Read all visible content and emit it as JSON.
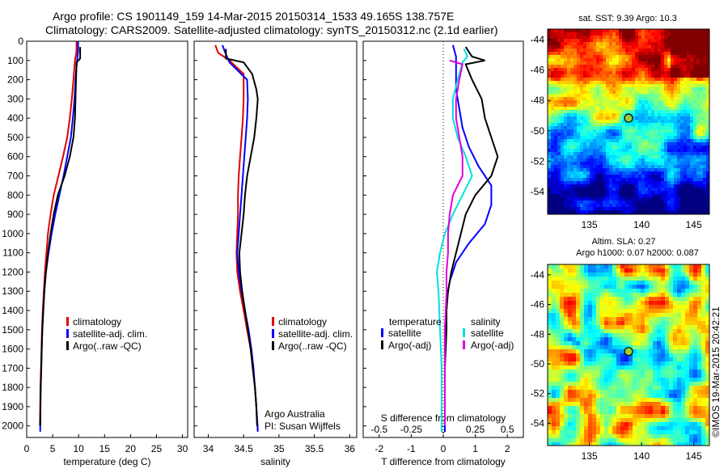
{
  "header": {
    "line1": "Argo profile: CS 1901149_159 14-Mar-2015 20150314_1533 49.165S 138.757E",
    "line2": "Climatology: CARS2009. Satellite-adjusted climatology: synTS_20150312.nc (2.1d earlier)"
  },
  "colors": {
    "climatology": "#e00000",
    "satellite": "#0000ff",
    "argo": "#000000",
    "satellite_diff_s": "#00e0e0",
    "argo_diff_s": "#e000e0"
  },
  "footer_note": "©IMOS 19-Mar-2015 20:42:21",
  "chart_data": [
    {
      "type": "line",
      "panel": "temperature",
      "xlabel": "temperature (deg C)",
      "ylabel": "",
      "xlim": [
        0,
        31
      ],
      "ylim": [
        2060,
        0
      ],
      "x_ticks": [
        0,
        5,
        10,
        15,
        20,
        25,
        30
      ],
      "y_ticks": [
        0,
        100,
        200,
        300,
        400,
        500,
        600,
        700,
        800,
        900,
        1000,
        1100,
        1200,
        1300,
        1400,
        1500,
        1600,
        1700,
        1800,
        1900,
        2000
      ],
      "legend": {
        "position": "lower-right",
        "entries": [
          "climatology",
          "satellite-adj. clim.",
          "Argo(..raw -QC)"
        ]
      },
      "series": [
        {
          "name": "climatology",
          "color_key": "climatology",
          "points": [
            [
              9.6,
              0
            ],
            [
              9.6,
              50
            ],
            [
              9.3,
              100
            ],
            [
              9.0,
              200
            ],
            [
              8.7,
              300
            ],
            [
              8.3,
              400
            ],
            [
              7.8,
              500
            ],
            [
              7.0,
              600
            ],
            [
              6.1,
              700
            ],
            [
              5.2,
              800
            ],
            [
              4.6,
              900
            ],
            [
              4.1,
              1000
            ],
            [
              3.8,
              1100
            ],
            [
              3.5,
              1200
            ],
            [
              3.3,
              1300
            ],
            [
              3.1,
              1400
            ],
            [
              2.95,
              1500
            ],
            [
              2.85,
              1600
            ],
            [
              2.75,
              1700
            ],
            [
              2.65,
              1800
            ],
            [
              2.6,
              1900
            ],
            [
              2.55,
              2000
            ]
          ]
        },
        {
          "name": "satellite-adj. clim.",
          "color_key": "satellite",
          "points": [
            [
              9.9,
              0
            ],
            [
              9.9,
              50
            ],
            [
              9.7,
              100
            ],
            [
              9.4,
              200
            ],
            [
              9.2,
              300
            ],
            [
              8.9,
              400
            ],
            [
              8.5,
              500
            ],
            [
              7.8,
              600
            ],
            [
              7.1,
              700
            ],
            [
              6.3,
              800
            ],
            [
              5.5,
              900
            ],
            [
              4.8,
              1000
            ],
            [
              4.2,
              1100
            ],
            [
              3.7,
              1200
            ],
            [
              3.4,
              1300
            ],
            [
              3.2,
              1400
            ],
            [
              3.0,
              1500
            ],
            [
              2.9,
              1600
            ],
            [
              2.8,
              1700
            ],
            [
              2.7,
              1800
            ],
            [
              2.65,
              1900
            ],
            [
              2.6,
              2030
            ]
          ]
        },
        {
          "name": "Argo(..raw -QC)",
          "color_key": "argo",
          "points": [
            [
              10.3,
              30
            ],
            [
              10.3,
              90
            ],
            [
              9.6,
              110
            ],
            [
              9.5,
              200
            ],
            [
              9.4,
              300
            ],
            [
              9.3,
              400
            ],
            [
              9.0,
              500
            ],
            [
              8.3,
              600
            ],
            [
              7.3,
              700
            ],
            [
              6.0,
              800
            ],
            [
              5.2,
              900
            ],
            [
              4.6,
              1000
            ],
            [
              4.1,
              1100
            ],
            [
              3.7,
              1200
            ],
            [
              3.4,
              1300
            ],
            [
              3.2,
              1400
            ],
            [
              3.0,
              1500
            ],
            [
              2.9,
              1600
            ],
            [
              2.8,
              1700
            ],
            [
              2.7,
              1800
            ],
            [
              2.65,
              1900
            ],
            [
              2.6,
              2000
            ]
          ]
        }
      ]
    },
    {
      "type": "line",
      "panel": "salinity",
      "xlabel": "salinity",
      "xlim": [
        33.8,
        36.1
      ],
      "ylim": [
        2060,
        0
      ],
      "x_ticks": [
        34,
        34.5,
        35,
        35.5,
        36
      ],
      "legend": {
        "position": "lower-right",
        "entries": [
          "climatology",
          "satellite-adj. clim.",
          "Argo(..raw -QC)"
        ]
      },
      "annotation": [
        "Argo Australia",
        "PI: Susan Wijffels"
      ],
      "series": [
        {
          "name": "climatology",
          "color_key": "climatology",
          "points": [
            [
              34.1,
              20
            ],
            [
              34.14,
              60
            ],
            [
              34.3,
              100
            ],
            [
              34.5,
              170
            ],
            [
              34.5,
              300
            ],
            [
              34.49,
              400
            ],
            [
              34.47,
              500
            ],
            [
              34.45,
              600
            ],
            [
              34.43,
              700
            ],
            [
              34.42,
              800
            ],
            [
              34.42,
              900
            ],
            [
              34.41,
              1000
            ],
            [
              34.4,
              1100
            ],
            [
              34.41,
              1200
            ],
            [
              34.45,
              1300
            ],
            [
              34.5,
              1400
            ],
            [
              34.55,
              1500
            ],
            [
              34.6,
              1600
            ],
            [
              34.63,
              1700
            ],
            [
              34.66,
              1800
            ],
            [
              34.68,
              1900
            ],
            [
              34.7,
              2020
            ]
          ]
        },
        {
          "name": "satellite-adj. clim.",
          "color_key": "satellite",
          "points": [
            [
              34.2,
              20
            ],
            [
              34.24,
              60
            ],
            [
              34.3,
              110
            ],
            [
              34.55,
              200
            ],
            [
              34.56,
              300
            ],
            [
              34.55,
              400
            ],
            [
              34.53,
              500
            ],
            [
              34.51,
              600
            ],
            [
              34.49,
              700
            ],
            [
              34.47,
              800
            ],
            [
              34.45,
              900
            ],
            [
              34.43,
              1000
            ],
            [
              34.41,
              1100
            ],
            [
              34.43,
              1200
            ],
            [
              34.47,
              1300
            ],
            [
              34.52,
              1400
            ],
            [
              34.57,
              1500
            ],
            [
              34.61,
              1600
            ],
            [
              34.64,
              1700
            ],
            [
              34.66,
              1800
            ],
            [
              34.68,
              1900
            ],
            [
              34.7,
              2030
            ]
          ]
        },
        {
          "name": "Argo(..raw -QC)",
          "color_key": "argo",
          "points": [
            [
              34.25,
              40
            ],
            [
              34.25,
              90
            ],
            [
              34.5,
              110
            ],
            [
              34.62,
              170
            ],
            [
              34.68,
              250
            ],
            [
              34.7,
              300
            ],
            [
              34.68,
              400
            ],
            [
              34.65,
              500
            ],
            [
              34.6,
              600
            ],
            [
              34.55,
              700
            ],
            [
              34.52,
              800
            ],
            [
              34.5,
              900
            ],
            [
              34.47,
              1000
            ],
            [
              34.44,
              1100
            ],
            [
              34.45,
              1200
            ],
            [
              34.48,
              1300
            ],
            [
              34.52,
              1400
            ],
            [
              34.56,
              1500
            ],
            [
              34.6,
              1600
            ],
            [
              34.63,
              1700
            ],
            [
              34.66,
              1800
            ],
            [
              34.68,
              1900
            ],
            [
              34.69,
              2000
            ]
          ]
        }
      ]
    },
    {
      "type": "line",
      "panel": "difference",
      "xlabel": "T difference from climatology",
      "xlabel_top": "S difference from climatology",
      "xlim": [
        -2.5,
        2.5
      ],
      "ylim": [
        2060,
        0
      ],
      "x_ticks": [
        "-2",
        "-1",
        "0",
        "1",
        "2"
      ],
      "x_ticks_top": [
        "-0.5",
        "-0.25",
        "0",
        "0.25",
        "0.5"
      ],
      "legend": {
        "position": "lower-center",
        "temperature_header": "temperature",
        "salinity_header": "salinity",
        "temperature_entries": [
          "satellite",
          "Argo(-adj)"
        ],
        "salinity_entries": [
          "satellite",
          "Argo(-adj)"
        ]
      },
      "series": [
        {
          "name": "T satellite",
          "color_key": "satellite",
          "points": [
            [
              0.3,
              20
            ],
            [
              0.4,
              80
            ],
            [
              0.4,
              150
            ],
            [
              0.4,
              250
            ],
            [
              0.5,
              350
            ],
            [
              0.6,
              450
            ],
            [
              0.8,
              550
            ],
            [
              1.1,
              650
            ],
            [
              1.5,
              750
            ],
            [
              1.5,
              850
            ],
            [
              1.3,
              950
            ],
            [
              0.8,
              1050
            ],
            [
              0.4,
              1150
            ],
            [
              0.2,
              1250
            ],
            [
              0.1,
              1350
            ],
            [
              0.05,
              1500
            ],
            [
              0.05,
              1700
            ],
            [
              0.05,
              1900
            ],
            [
              0.05,
              2030
            ]
          ]
        },
        {
          "name": "T Argo(-adj)",
          "color_key": "argo",
          "points": [
            [
              0.7,
              30
            ],
            [
              0.9,
              80
            ],
            [
              1.3,
              100
            ],
            [
              0.7,
              120
            ],
            [
              0.9,
              200
            ],
            [
              1.2,
              300
            ],
            [
              1.3,
              400
            ],
            [
              1.5,
              500
            ],
            [
              1.7,
              600
            ],
            [
              1.5,
              700
            ],
            [
              1.0,
              800
            ],
            [
              0.7,
              900
            ],
            [
              0.55,
              1000
            ],
            [
              0.4,
              1100
            ],
            [
              0.25,
              1200
            ],
            [
              0.15,
              1300
            ],
            [
              0.1,
              1400
            ],
            [
              0.1,
              1500
            ],
            [
              0.05,
              1700
            ],
            [
              0.05,
              1900
            ],
            [
              0.05,
              2000
            ]
          ]
        },
        {
          "name": "S satellite",
          "color_key": "satellite_diff_s",
          "points": [
            [
              0.65,
              40
            ],
            [
              0.75,
              80
            ],
            [
              0.6,
              110
            ],
            [
              0.45,
              200
            ],
            [
              0.3,
              300
            ],
            [
              0.3,
              400
            ],
            [
              0.45,
              500
            ],
            [
              0.7,
              600
            ],
            [
              0.9,
              700
            ],
            [
              0.6,
              800
            ],
            [
              0.3,
              900
            ],
            [
              0.05,
              1000
            ],
            [
              -0.1,
              1100
            ],
            [
              -0.2,
              1200
            ],
            [
              -0.15,
              1300
            ],
            [
              -0.1,
              1500
            ],
            [
              -0.05,
              1700
            ],
            [
              -0.05,
              1900
            ],
            [
              -0.05,
              2030
            ]
          ]
        },
        {
          "name": "S Argo(-adj)",
          "color_key": "argo_diff_s",
          "points": [
            [
              0.2,
              100
            ],
            [
              0.6,
              120
            ],
            [
              0.5,
              200
            ],
            [
              0.4,
              300
            ],
            [
              0.4,
              400
            ],
            [
              0.5,
              500
            ],
            [
              0.6,
              600
            ],
            [
              0.6,
              700
            ],
            [
              0.3,
              800
            ],
            [
              0.2,
              900
            ],
            [
              0.15,
              1000
            ],
            [
              0.15,
              1100
            ],
            [
              0.1,
              1200
            ],
            [
              0.1,
              1300
            ],
            [
              0.05,
              1500
            ],
            [
              0.05,
              1700
            ],
            [
              0.05,
              1900
            ],
            [
              0.05,
              2000
            ]
          ]
        }
      ]
    },
    {
      "type": "heatmap",
      "panel": "sst_map",
      "title": "sat. SST: 9.39 Argo: 10.3",
      "xlim": [
        131,
        146.5
      ],
      "ylim": [
        -55.5,
        -43.3
      ],
      "x_ticks": [
        135,
        140,
        145
      ],
      "y_ticks": [
        -44,
        -46,
        -48,
        -50,
        -52,
        -54
      ],
      "marker": {
        "lon": 138.757,
        "lat": -49.165
      }
    },
    {
      "type": "heatmap",
      "panel": "sla_map",
      "title": "Altim. SLA: 0.27",
      "subtitle": "Argo h1000: 0.07 h2000: 0.087",
      "xlim": [
        131,
        146.5
      ],
      "ylim": [
        -55.5,
        -43.3
      ],
      "x_ticks": [
        135,
        140,
        145
      ],
      "y_ticks": [
        -44,
        -46,
        -48,
        -50,
        -52,
        -54
      ],
      "marker": {
        "lon": 138.757,
        "lat": -49.165
      }
    }
  ]
}
